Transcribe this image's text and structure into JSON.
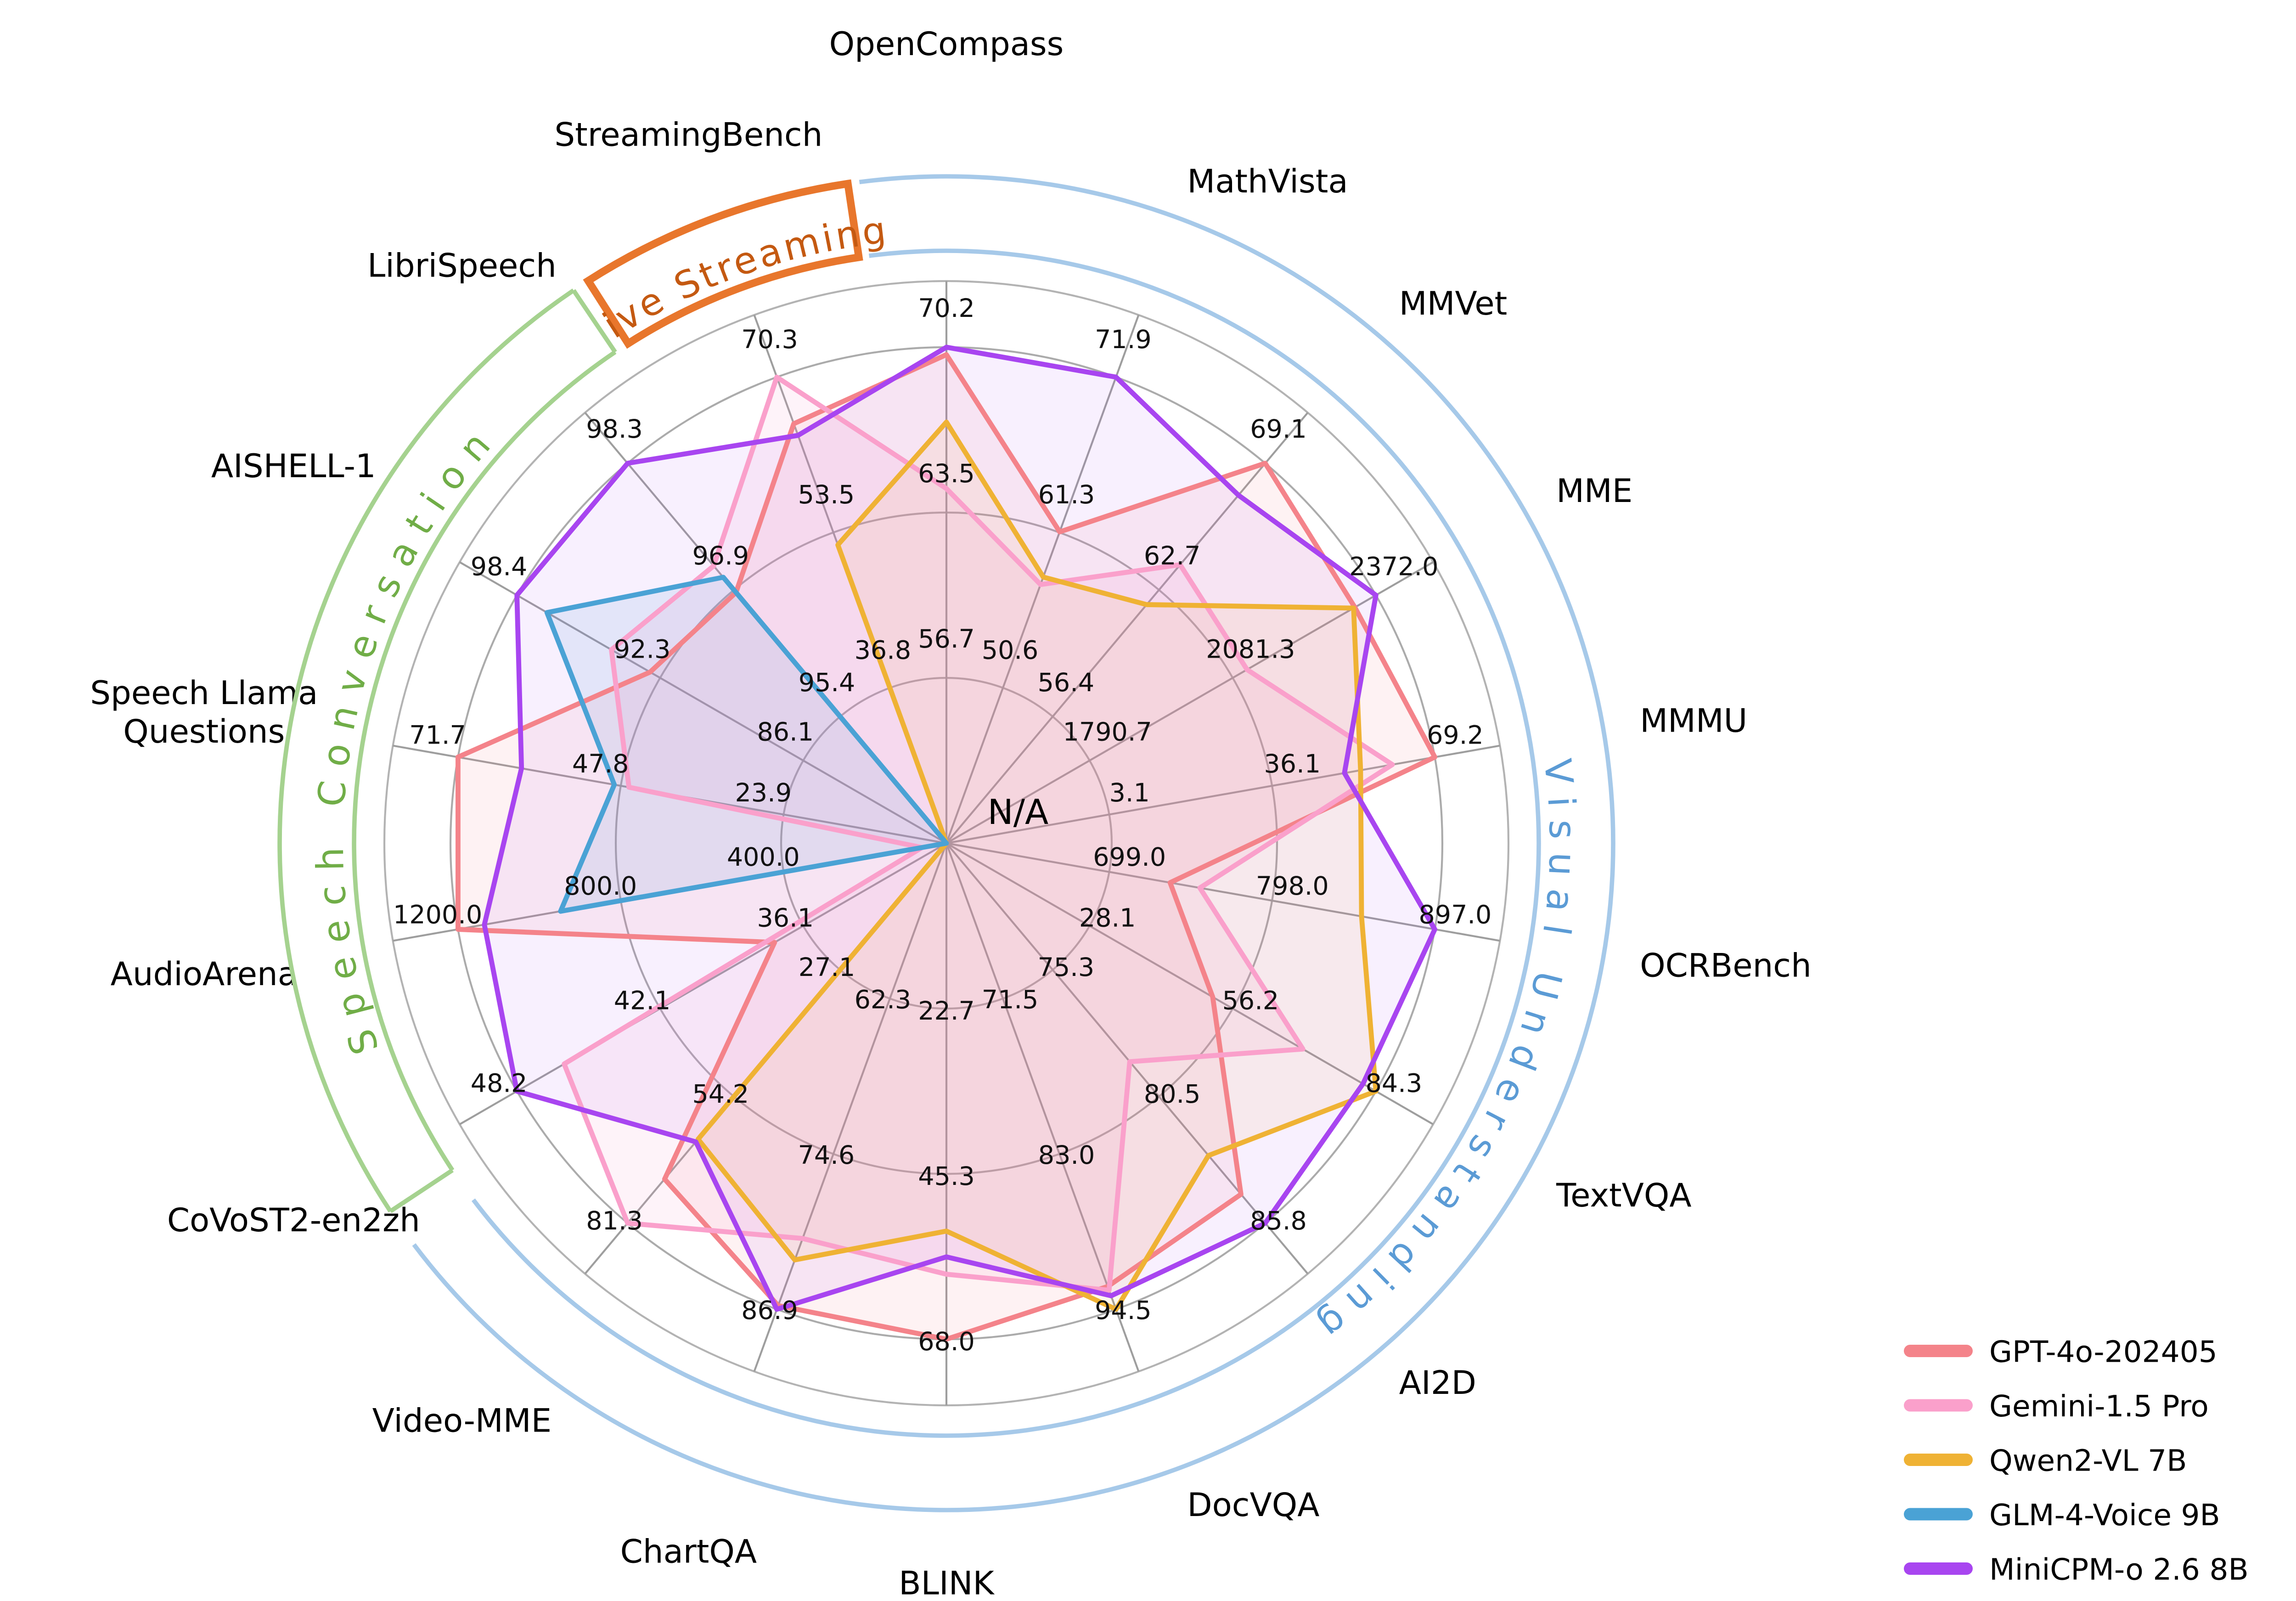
{
  "figure": {
    "background": "#ffffff",
    "center_label": "N/A"
  },
  "chart_data": {
    "type": "radar",
    "title": "",
    "axes_start_deg": 0,
    "axes_step_deg": 20,
    "rings_fraction": [
      0.3333,
      0.6667,
      1.0
    ],
    "axes": [
      {
        "label": "OpenCompass",
        "ring_labels": [
          "56.7",
          "63.5",
          "70.2"
        ]
      },
      {
        "label": "MathVista",
        "ring_labels": [
          "50.6",
          "61.3",
          "71.9"
        ]
      },
      {
        "label": "MMVet",
        "ring_labels": [
          "56.4",
          "62.7",
          "69.1"
        ]
      },
      {
        "label": "MME",
        "ring_labels": [
          "1790.7",
          "2081.3",
          "2372.0"
        ]
      },
      {
        "label": "MMMU",
        "ring_labels": [
          "3.1",
          "36.1",
          "69.2"
        ]
      },
      {
        "label": "OCRBench",
        "ring_labels": [
          "699.0",
          "798.0",
          "897.0"
        ]
      },
      {
        "label": "TextVQA",
        "ring_labels": [
          "28.1",
          "56.2",
          "84.3"
        ]
      },
      {
        "label": "AI2D",
        "ring_labels": [
          "75.3",
          "80.5",
          "85.8"
        ]
      },
      {
        "label": "DocVQA",
        "ring_labels": [
          "71.5",
          "83.0",
          "94.5"
        ]
      },
      {
        "label": "BLINK",
        "ring_labels": [
          "22.7",
          "45.3",
          "68.0"
        ]
      },
      {
        "label": "ChartQA",
        "ring_labels": [
          "62.3",
          "74.6",
          "86.9"
        ]
      },
      {
        "label": "Video-MME",
        "ring_labels": [
          "27.1",
          "54.2",
          "81.3"
        ]
      },
      {
        "label": "CoVoST2-en2zh",
        "ring_labels": [
          "36.1",
          "42.1",
          "48.2"
        ]
      },
      {
        "label": "AudioArena",
        "ring_labels": [
          "400.0",
          "800.0",
          "1200.0"
        ]
      },
      {
        "label": "Speech Llama\nQuestions",
        "ring_labels": [
          "23.9",
          "47.8",
          "71.7"
        ]
      },
      {
        "label": "AISHELL-1",
        "ring_labels": [
          "86.1",
          "92.3",
          "98.4"
        ]
      },
      {
        "label": "LibriSpeech",
        "ring_labels": [
          "95.4",
          "96.9",
          "98.3"
        ]
      },
      {
        "label": "StreamingBench",
        "ring_labels": [
          "36.8",
          "53.5",
          "70.3"
        ]
      }
    ],
    "series": [
      {
        "name": "GPT-4o-202405",
        "color": "#F4838A",
        "fill_opacity": 0.1,
        "values_norm": [
          0.985,
          0.668,
          1.0,
          0.951,
          1.0,
          0.458,
          0.62,
          0.924,
          0.951,
          1.0,
          0.992,
          0.884,
          0.4,
          1.0,
          1.0,
          0.69,
          0.66,
          0.9
        ]
      },
      {
        "name": "Gemini-1.5 Pro",
        "color": "#FAA0CB",
        "fill_opacity": 0.12,
        "values_norm": [
          0.715,
          0.555,
          0.733,
          0.7,
          0.913,
          0.519,
          0.83,
          0.575,
          0.959,
          0.869,
          0.848,
          1.0,
          0.89,
          0.05,
          0.65,
          0.78,
          0.73,
          1.0
        ]
      },
      {
        "name": "Qwen2-VL 7B",
        "color": "#EFB234",
        "fill_opacity": 0.09,
        "values_norm": [
          0.849,
          0.571,
          0.628,
          0.948,
          0.848,
          0.85,
          1.0,
          0.822,
          1.0,
          0.782,
          0.894,
          0.779,
          0,
          0,
          0,
          0,
          0,
          0.64
        ]
      },
      {
        "name": "GLM-4-Voice 9B",
        "color": "#4AA2D5",
        "fill_opacity": 0.12,
        "values_norm": [
          0,
          0,
          0,
          0,
          0,
          0,
          0,
          0,
          0,
          0,
          0,
          0,
          0,
          0.79,
          0.68,
          0.93,
          0.7,
          0
        ]
      },
      {
        "name": "MiniCPM-o 2.6 8B",
        "color": "#A845F0",
        "fill_opacity": 0.08,
        "values_norm": [
          1.0,
          1.0,
          0.916,
          1.0,
          0.815,
          1.0,
          0.97,
          1.0,
          0.971,
          0.834,
          1.0,
          0.786,
          1.0,
          0.946,
          0.87,
          1.0,
          1.0,
          0.875
        ]
      }
    ],
    "groups": [
      {
        "label": "Visual Understanding",
        "start_deg": 352.5,
        "end_deg": 593.0,
        "arc_color": "#A6C9E9",
        "text_color": "#5B9BD5",
        "style": "open",
        "letter_spacing": 9
      },
      {
        "label": "Speech Conversation",
        "start_deg": 236.5,
        "end_deg": 326.0,
        "arc_color": "#A5D28F",
        "text_color": "#70AD47",
        "style": "capped",
        "letter_spacing": 10
      },
      {
        "label": "Live Streaming",
        "start_deg": 327.5,
        "end_deg": 351.5,
        "arc_color": "#E8762C",
        "text_color": "#C45911",
        "style": "frame",
        "letter_spacing": 2
      }
    ],
    "legend": {
      "entries": [
        "GPT-4o-202405",
        "Gemini-1.5 Pro",
        "Qwen2-VL 7B",
        "GLM-4-Voice 9B",
        "MiniCPM-o 2.6 8B"
      ],
      "position": "lower-right"
    },
    "grid": {
      "ring_color": "#ABABAB",
      "spoke_color": "#9E9E9E",
      "boundary_color": "#B3B3B3"
    },
    "center_label": "N/A"
  }
}
